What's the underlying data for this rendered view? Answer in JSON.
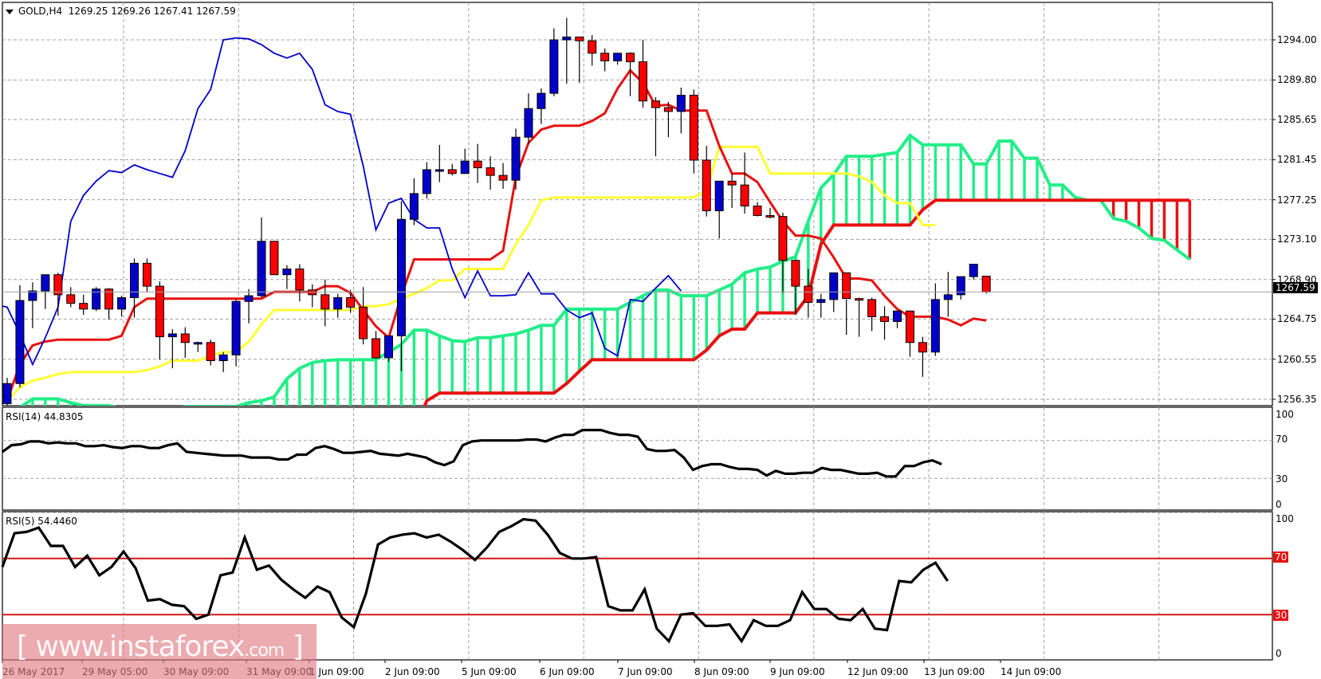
{
  "header": {
    "symbol": "GOLD,H4",
    "ohlc": "1269.25 1269.26 1267.41 1267.59"
  },
  "price_axis": {
    "ticks": [
      "1294.00",
      "1289.80",
      "1285.65",
      "1281.45",
      "1277.25",
      "1273.10",
      "1268.90",
      "1264.75",
      "1260.55",
      "1256.35"
    ],
    "current_price": "1267.59"
  },
  "rsi14": {
    "title": "RSI(14) 44.8305",
    "ticks": [
      "100",
      "70",
      "30",
      "0"
    ]
  },
  "rsi5": {
    "title": "RSI(5) 54.4460",
    "ticks": [
      "100",
      "0"
    ],
    "levels": [
      "70",
      "30"
    ]
  },
  "time_axis": {
    "labels": [
      "26 May 2017",
      "29 May 05:00",
      "30 May 09:00",
      "31 May 09:00",
      "1 Jun 09:00",
      "2 Jun 09:00",
      "5 Jun 09:00",
      "6 Jun 09:00",
      "7 Jun 09:00",
      "8 Jun 09:00",
      "9 Jun 09:00",
      "12 Jun 09:00",
      "13 Jun 09:00",
      "14 Jun 09:00"
    ]
  },
  "watermark": {
    "bracket_open": "[",
    "domain": "www.instaforex",
    "tld": ".com",
    "bracket_close": "]"
  },
  "colors": {
    "bull": "#0000cc",
    "bear": "#ff0000",
    "tenkan": "#e81010",
    "kijun": "#ffff33",
    "chikou": "#0000cc",
    "senkou_a": "#22ee88",
    "senkou_b": "#e81010",
    "rsi": "#000000",
    "grid": "#a0a0a0"
  },
  "chart_data": [
    {
      "type": "candlestick",
      "title": "GOLD,H4",
      "indicators": [
        "Ichimoku Kinko Hyo"
      ],
      "ylim": [
        1256.35,
        1294.0
      ],
      "yticks": [
        1294.0,
        1289.8,
        1285.65,
        1281.45,
        1277.25,
        1273.1,
        1268.9,
        1264.75,
        1260.55,
        1256.35
      ],
      "last_price": 1267.59,
      "xlabels": [
        "26 May 2017",
        "29 May 05:00",
        "30 May 09:00",
        "31 May 09:00",
        "1 Jun 09:00",
        "2 Jun 09:00",
        "5 Jun 09:00",
        "6 Jun 09:00",
        "7 Jun 09:00",
        "8 Jun 09:00",
        "9 Jun 09:00",
        "12 Jun 09:00",
        "13 Jun 09:00",
        "14 Jun 09:00"
      ],
      "candles": [
        [
          1255.9,
          1258.6,
          1255.4,
          1258.0
        ],
        [
          1258.0,
          1268.3,
          1257.6,
          1266.7
        ],
        [
          1266.7,
          1268.6,
          1263.8,
          1267.7
        ],
        [
          1267.7,
          1269.1,
          1265.8,
          1269.4
        ],
        [
          1269.4,
          1269.6,
          1265.1,
          1267.3
        ],
        [
          1267.3,
          1268.1,
          1266.0,
          1266.4
        ],
        [
          1266.4,
          1267.3,
          1265.2,
          1265.8
        ],
        [
          1265.8,
          1268.1,
          1265.6,
          1267.9
        ],
        [
          1267.9,
          1268.0,
          1264.7,
          1265.8
        ],
        [
          1265.8,
          1267.2,
          1265.0,
          1267.0
        ],
        [
          1267.0,
          1271.1,
          1264.9,
          1270.6
        ],
        [
          1270.6,
          1271.1,
          1267.6,
          1268.2
        ],
        [
          1268.2,
          1268.7,
          1260.5,
          1262.9
        ],
        [
          1262.9,
          1263.7,
          1259.6,
          1263.2
        ],
        [
          1263.2,
          1263.9,
          1260.7,
          1262.3
        ],
        [
          1262.3,
          1262.4,
          1261.3,
          1262.3
        ],
        [
          1262.3,
          1262.6,
          1259.9,
          1260.4
        ],
        [
          1260.4,
          1261.3,
          1259.2,
          1261.0
        ],
        [
          1261.0,
          1266.8,
          1259.8,
          1266.6
        ],
        [
          1266.6,
          1267.9,
          1264.3,
          1267.2
        ],
        [
          1267.2,
          1275.4,
          1267.0,
          1272.9
        ],
        [
          1272.9,
          1271.8,
          1269.6,
          1269.4
        ],
        [
          1269.4,
          1270.4,
          1267.9,
          1270.0
        ],
        [
          1270.0,
          1270.5,
          1266.6,
          1267.8
        ],
        [
          1267.8,
          1268.4,
          1266.0,
          1267.3
        ],
        [
          1267.3,
          1268.9,
          1264.0,
          1265.8
        ],
        [
          1265.8,
          1267.4,
          1264.9,
          1267.0
        ],
        [
          1267.0,
          1267.8,
          1265.4,
          1266.0
        ],
        [
          1266.0,
          1268.1,
          1262.1,
          1262.7
        ],
        [
          1262.7,
          1263.5,
          1260.6,
          1260.7
        ],
        [
          1260.7,
          1263.0,
          1260.3,
          1263.0
        ],
        [
          1263.0,
          1277.1,
          1259.3,
          1275.2
        ],
        [
          1275.2,
          1279.5,
          1274.6,
          1277.9
        ],
        [
          1277.9,
          1281.2,
          1277.4,
          1280.4
        ],
        [
          1280.4,
          1283.0,
          1279.1,
          1280.4
        ],
        [
          1280.4,
          1281.0,
          1279.8,
          1280.0
        ],
        [
          1280.0,
          1282.6,
          1280.2,
          1281.3
        ],
        [
          1281.3,
          1283.1,
          1279.0,
          1280.6
        ],
        [
          1280.6,
          1281.8,
          1278.3,
          1279.8
        ],
        [
          1279.8,
          1281.1,
          1278.4,
          1279.3
        ],
        [
          1279.3,
          1284.7,
          1278.3,
          1283.8
        ],
        [
          1283.8,
          1288.4,
          1283.1,
          1286.8
        ],
        [
          1286.8,
          1288.9,
          1285.2,
          1288.4
        ],
        [
          1288.4,
          1295.2,
          1288.1,
          1294.0
        ],
        [
          1294.0,
          1296.3,
          1289.4,
          1294.3
        ],
        [
          1294.3,
          1294.0,
          1289.5,
          1293.9
        ],
        [
          1293.9,
          1294.5,
          1291.3,
          1292.6
        ],
        [
          1292.6,
          1293.1,
          1290.7,
          1291.8
        ],
        [
          1291.8,
          1292.5,
          1291.4,
          1292.6
        ],
        [
          1292.6,
          1292.7,
          1288.1,
          1291.7
        ],
        [
          1291.7,
          1294.0,
          1286.9,
          1287.6
        ],
        [
          1287.6,
          1288.0,
          1281.8,
          1286.9
        ],
        [
          1286.9,
          1287.5,
          1283.8,
          1286.5
        ],
        [
          1286.5,
          1289.0,
          1284.2,
          1288.2
        ],
        [
          1288.2,
          1288.8,
          1280.0,
          1281.4
        ],
        [
          1281.4,
          1282.9,
          1275.5,
          1276.1
        ],
        [
          1276.1,
          1278.4,
          1273.2,
          1279.2
        ],
        [
          1279.2,
          1280.0,
          1276.4,
          1278.8
        ],
        [
          1278.8,
          1282.2,
          1275.8,
          1276.6
        ],
        [
          1276.6,
          1277.0,
          1275.5,
          1275.6
        ],
        [
          1275.6,
          1276.4,
          1275.3,
          1275.5
        ],
        [
          1275.5,
          1275.9,
          1267.5,
          1270.9
        ],
        [
          1270.9,
          1269.9,
          1265.2,
          1268.2
        ],
        [
          1268.2,
          1270.0,
          1264.9,
          1266.5
        ],
        [
          1266.5,
          1267.4,
          1264.9,
          1266.8
        ],
        [
          1266.8,
          1268.8,
          1265.5,
          1269.6
        ],
        [
          1269.6,
          1266.8,
          1263.1,
          1266.9
        ],
        [
          1266.9,
          1267.0,
          1262.9,
          1266.8
        ],
        [
          1266.8,
          1267.0,
          1263.5,
          1265.0
        ],
        [
          1265.0,
          1266.1,
          1262.6,
          1264.5
        ],
        [
          1264.5,
          1265.4,
          1263.8,
          1265.6
        ],
        [
          1265.6,
          1265.2,
          1260.8,
          1262.3
        ],
        [
          1262.3,
          1262.9,
          1258.7,
          1261.3
        ],
        [
          1261.3,
          1268.5,
          1260.9,
          1266.8
        ],
        [
          1266.8,
          1269.7,
          1265.0,
          1267.3
        ],
        [
          1267.3,
          1268.6,
          1266.8,
          1269.2
        ],
        [
          1269.2,
          1270.0,
          1268.9,
          1270.5
        ],
        [
          1269.25,
          1269.26,
          1267.41,
          1267.59
        ]
      ],
      "tenkan": [
        1256.2,
        1260,
        1262,
        1262.4,
        1262.6,
        1262.6,
        1262.6,
        1262.6,
        1262.6,
        1263,
        1266.0,
        1266.9,
        1266.9,
        1266.9,
        1266.9,
        1266.9,
        1266.9,
        1266.9,
        1266.9,
        1266.9,
        1266.9,
        1267.6,
        1267.6,
        1267.6,
        1267.6,
        1268.2,
        1268.2,
        1267.5,
        1265.7,
        1264.0,
        1262.8,
        1267.2,
        1271.0,
        1271.0,
        1271.0,
        1271.0,
        1271.0,
        1271.0,
        1271.0,
        1271.9,
        1279.6,
        1283.2,
        1284.6,
        1285.0,
        1285.0,
        1285.0,
        1285.5,
        1286.3,
        1288.9,
        1290.8,
        1289.5,
        1287.1,
        1287.2,
        1286.6,
        1286.6,
        1286.6,
        1282.9,
        1280.0,
        1280.0,
        1279.1,
        1277.0,
        1275.0,
        1273.5,
        1273.5,
        1273.2,
        1271.2,
        1269.0,
        1269.0,
        1268.8,
        1267.2,
        1265.8,
        1265.0,
        1265.0,
        1265.0,
        1264.7,
        1264.1,
        1264.8,
        1264.6
      ],
      "kijun": [
        1256.2,
        1257.6,
        1258.3,
        1258.6,
        1259.0,
        1259.2,
        1259.2,
        1259.2,
        1259.2,
        1259.2,
        1259.2,
        1259.4,
        1259.8,
        1260.4,
        1260.4,
        1260.4,
        1260.9,
        1261.3,
        1261.3,
        1262.4,
        1264.2,
        1265.7,
        1265.7,
        1265.7,
        1265.7,
        1265.7,
        1265.7,
        1265.7,
        1266.1,
        1266.1,
        1266.3,
        1266.9,
        1267.4,
        1268.0,
        1268.8,
        1268.8,
        1270.0,
        1270.0,
        1270.0,
        1270.0,
        1272.6,
        1274.6,
        1277.2,
        1277.5,
        1277.5,
        1277.5,
        1277.5,
        1277.5,
        1277.5,
        1277.5,
        1277.5,
        1277.5,
        1277.5,
        1277.5,
        1277.5,
        1278.2,
        1282.8,
        1282.8,
        1282.8,
        1282.8,
        1280.0,
        1280.0,
        1280.0,
        1280.0,
        1280.0,
        1280.0,
        1280.0,
        1279.7,
        1279.1,
        1277.7,
        1276.9,
        1276.9,
        1274.6,
        1274.6
      ],
      "chikou": [
        1266.3,
        1266.0,
        1263.2,
        1260.0,
        1262.8,
        1266.0,
        1275.0,
        1277.7,
        1279.2,
        1280.3,
        1280.1,
        1280.9,
        1280.4,
        1280.0,
        1279.6,
        1282.4,
        1286.8,
        1288.8,
        1294.0,
        1294.2,
        1294.1,
        1293.5,
        1292.6,
        1292.1,
        1292.6,
        1290.9,
        1287.2,
        1286.5,
        1286.2,
        1280.8,
        1274.1,
        1276.9,
        1277.4,
        1275.2,
        1274.3,
        1274.3,
        1270.0,
        1267.0,
        1269.8,
        1267.2,
        1267.2,
        1267.3,
        1269.6,
        1267.4,
        1267.4,
        1265.7,
        1264.9,
        1265.4,
        1261.7,
        1260.9,
        1266.8,
        1266.6,
        1268.0,
        1269.3,
        1267.7
      ]
    },
    {
      "type": "line",
      "title": "RSI(14) 44.8305",
      "ylim": [
        0,
        100
      ],
      "yticks": [
        100,
        70,
        30,
        0
      ],
      "values": [
        58,
        65,
        66,
        69,
        69,
        67,
        68,
        67,
        67,
        64,
        64,
        65,
        63,
        62,
        64,
        64,
        62,
        62,
        65,
        67,
        58,
        57,
        56,
        55,
        54,
        54,
        54,
        52,
        52,
        52,
        50,
        50,
        55,
        55,
        62,
        64,
        61,
        57,
        57,
        58,
        59,
        56,
        55,
        54,
        56,
        54,
        52,
        47,
        44,
        48,
        65,
        69,
        70,
        70,
        70,
        70,
        70,
        71,
        71,
        69,
        73,
        76,
        76,
        81,
        81,
        81,
        78,
        76,
        76,
        74,
        61,
        59,
        59,
        60,
        52,
        39,
        43,
        45,
        45,
        42,
        40,
        40,
        39,
        33,
        38,
        35,
        35,
        36,
        36,
        41,
        39,
        39,
        37,
        35,
        35,
        36,
        32,
        32,
        43,
        43,
        47,
        49,
        45
      ],
      "last_value": 44.8305
    },
    {
      "type": "line",
      "title": "RSI(5) 54.4460",
      "ylim": [
        0,
        100
      ],
      "yticks": [
        100,
        0
      ],
      "levels": [
        70,
        30
      ],
      "values": [
        64,
        88,
        89,
        92,
        79,
        79,
        64,
        72,
        58,
        64,
        75,
        63,
        40,
        41,
        37,
        36,
        27,
        30,
        58,
        60,
        85,
        62,
        65,
        55,
        48,
        42,
        50,
        46,
        28,
        21,
        45,
        80,
        85,
        87,
        88,
        85,
        87,
        82,
        76,
        69,
        78,
        89,
        93,
        98,
        97,
        87,
        74,
        70,
        70,
        71,
        36,
        33,
        33,
        48,
        20,
        11,
        30,
        31,
        22,
        22,
        23,
        11,
        26,
        22,
        22,
        26,
        46,
        34,
        34,
        27,
        26,
        34,
        20,
        19,
        54,
        53,
        62,
        67,
        54
      ],
      "last_value": 54.446
    }
  ]
}
